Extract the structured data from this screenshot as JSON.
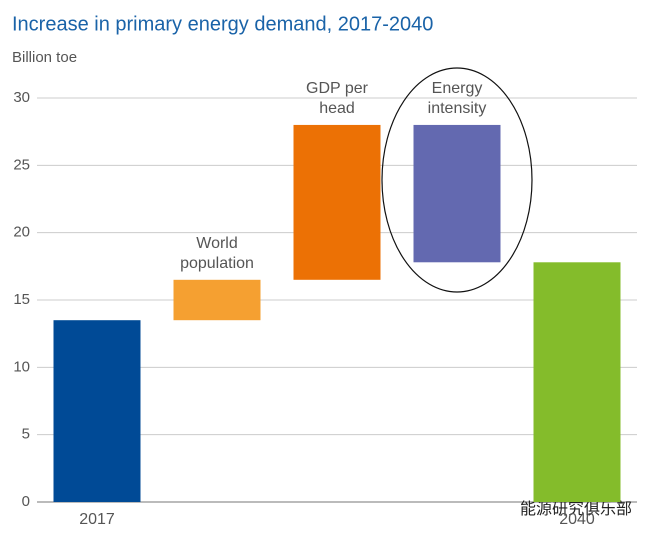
{
  "chart_data": {
    "type": "waterfall",
    "title": "Increase in primary energy demand, 2017-2040",
    "y_label": "Billion toe",
    "categories": [
      "2017",
      "World population",
      "GDP per head",
      "Energy intensity",
      "2040"
    ],
    "values": [
      13.5,
      3.0,
      11.5,
      -10.2,
      17.8
    ],
    "colors": [
      "#004a96",
      "#f5a031",
      "#ec7105",
      "#6369b0",
      "#84bc2b"
    ],
    "ylim": [
      0,
      30
    ],
    "yticks": [
      0,
      5,
      10,
      15,
      20,
      25,
      30
    ],
    "grid": true,
    "watermark": "能源研究俱乐部"
  }
}
